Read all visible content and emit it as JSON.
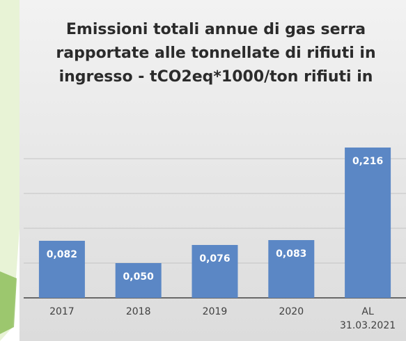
{
  "chart_data": {
    "type": "bar",
    "title": "Emissioni totali annue di gas serra rapportate alle tonnellate di rifiuti in ingresso - tCO2eq*1000/ton rifiuti in",
    "categories": [
      "2017",
      "2018",
      "2019",
      "2020",
      "AL\n31.03.2021"
    ],
    "values": [
      0.082,
      0.05,
      0.076,
      0.083,
      0.216
    ],
    "value_labels": [
      "0,082",
      "0,050",
      "0,076",
      "0,083",
      "0,216"
    ],
    "color": "#5b87c5",
    "ylim": [
      0,
      0.25
    ],
    "yticks": [
      0,
      0.05,
      0.1,
      0.15,
      0.2
    ],
    "grid": true
  }
}
